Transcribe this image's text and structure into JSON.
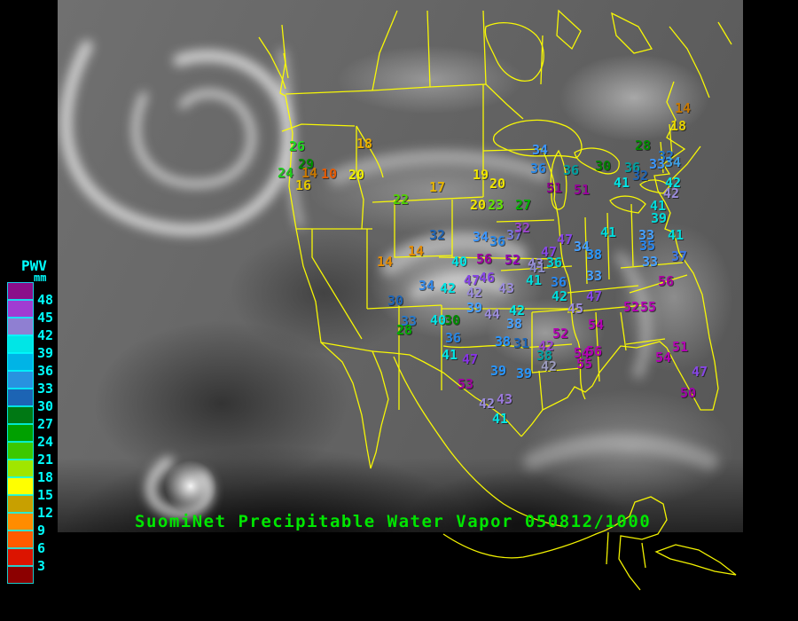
{
  "header": {
    "title": "SuomiNet Precipitable Water Vapor 050812/1000",
    "title_color": "#00e600"
  },
  "legend": {
    "title": "PWV",
    "unit": "mm",
    "text_color": "#00ffff",
    "labels": [
      "48",
      "45",
      "42",
      "39",
      "36",
      "33",
      "30",
      "27",
      "24",
      "21",
      "18",
      "15",
      "12",
      "9",
      "6",
      "3"
    ],
    "swatch_colors": [
      "#8a0f8a",
      "#a03cd2",
      "#8f7fd2",
      "#00e6e6",
      "#00b4e6",
      "#2892e0",
      "#1c64b4",
      "#007814",
      "#00a000",
      "#3cc800",
      "#a0e600",
      "#ffff00",
      "#c8a000",
      "#ff8c00",
      "#ff5a00",
      "#dc1400",
      "#8c0000"
    ]
  },
  "map": {
    "outline_color": "#ffff00",
    "cloud_color": "#ececec"
  },
  "stations": [
    [
      "26",
      326,
      158,
      "#1edc1e"
    ],
    [
      "29",
      336,
      178,
      "#008c00"
    ],
    [
      "24",
      313,
      188,
      "#1ecc1e"
    ],
    [
      "14",
      340,
      188,
      "#c87800"
    ],
    [
      "10",
      362,
      189,
      "#e65a00"
    ],
    [
      "20",
      393,
      190,
      "#f0f000"
    ],
    [
      "16",
      333,
      202,
      "#e6c800"
    ],
    [
      "18",
      402,
      155,
      "#e6a800"
    ],
    [
      "17",
      484,
      204,
      "#e6b400"
    ],
    [
      "22",
      443,
      218,
      "#50d200"
    ],
    [
      "19",
      533,
      190,
      "#f0e600"
    ],
    [
      "20",
      552,
      200,
      "#f0e600"
    ],
    [
      "34",
      600,
      162,
      "#3c96ff"
    ],
    [
      "36",
      598,
      183,
      "#2887e6"
    ],
    [
      "36",
      635,
      185,
      "#00a0a0"
    ],
    [
      "30",
      671,
      180,
      "#008200"
    ],
    [
      "51",
      616,
      205,
      "#8c008c"
    ],
    [
      "51",
      647,
      207,
      "#96009b"
    ],
    [
      "20",
      530,
      224,
      "#f0e600"
    ],
    [
      "23",
      550,
      224,
      "#64e600"
    ],
    [
      "27",
      581,
      224,
      "#00b400"
    ],
    [
      "14",
      761,
      115,
      "#c87800"
    ],
    [
      "18",
      756,
      135,
      "#e6d200"
    ],
    [
      "28",
      716,
      157,
      "#008c00"
    ],
    [
      "32",
      742,
      169,
      "#2878c8"
    ],
    [
      "33",
      732,
      178,
      "#3c96ff"
    ],
    [
      "34",
      750,
      176,
      "#3ca0e6"
    ],
    [
      "36",
      704,
      182,
      "#00a0a0"
    ],
    [
      "32",
      713,
      191,
      "#1e64b4"
    ],
    [
      "41",
      692,
      199,
      "#00e6e6"
    ],
    [
      "42",
      750,
      199,
      "#00e6e6"
    ],
    [
      "42",
      748,
      211,
      "#9b8cdc"
    ],
    [
      "41",
      733,
      225,
      "#00dcdc"
    ],
    [
      "39",
      734,
      239,
      "#00dcdc"
    ],
    [
      "41",
      753,
      258,
      "#00dcdc"
    ],
    [
      "33",
      720,
      258,
      "#46a0ff"
    ],
    [
      "35",
      721,
      270,
      "#2887f0"
    ],
    [
      "37",
      757,
      282,
      "#3c78e6"
    ],
    [
      "33",
      724,
      288,
      "#46a0ff"
    ],
    [
      "41",
      677,
      255,
      "#00dcdc"
    ],
    [
      "47",
      628,
      263,
      "#8746e6"
    ],
    [
      "34",
      647,
      271,
      "#46a0ff"
    ],
    [
      "47",
      610,
      277,
      "#8746e6"
    ],
    [
      "38",
      661,
      280,
      "#2896ff"
    ],
    [
      "36",
      616,
      289,
      "#00d2d2"
    ],
    [
      "43",
      595,
      290,
      "#9b8cdc"
    ],
    [
      "33",
      661,
      304,
      "#46a0ff"
    ],
    [
      "41",
      593,
      309,
      "#00dcdc"
    ],
    [
      "36",
      621,
      311,
      "#2887f0"
    ],
    [
      "56",
      742,
      310,
      "#aa00a0"
    ],
    [
      "42",
      622,
      327,
      "#00dcdc"
    ],
    [
      "47",
      661,
      327,
      "#8746e6"
    ],
    [
      "45",
      640,
      341,
      "#9b8cdc"
    ],
    [
      "52",
      703,
      339,
      "#b400b4"
    ],
    [
      "55",
      722,
      339,
      "#b400b4"
    ],
    [
      "32",
      484,
      258,
      "#1e64b4"
    ],
    [
      "14",
      460,
      276,
      "#e68c00"
    ],
    [
      "14",
      425,
      288,
      "#e68c00"
    ],
    [
      "34",
      533,
      260,
      "#3c96ff"
    ],
    [
      "36",
      552,
      265,
      "#2887e6"
    ],
    [
      "37",
      571,
      258,
      "#7878dc"
    ],
    [
      "32",
      580,
      250,
      "#9b46cc"
    ],
    [
      "40",
      509,
      288,
      "#00e6e6"
    ],
    [
      "56",
      537,
      285,
      "#a000a0"
    ],
    [
      "52",
      569,
      286,
      "#9100b4"
    ],
    [
      "41",
      597,
      295,
      "#8c8cc8"
    ],
    [
      "47",
      523,
      309,
      "#8746e6"
    ],
    [
      "46",
      540,
      306,
      "#8746e6"
    ],
    [
      "42",
      526,
      323,
      "#9b8cdc"
    ],
    [
      "43",
      562,
      318,
      "#9b8cdc"
    ],
    [
      "34",
      472,
      315,
      "#3287e6"
    ],
    [
      "42",
      496,
      318,
      "#00e6e6"
    ],
    [
      "30",
      437,
      332,
      "#1e64b4"
    ],
    [
      "39",
      526,
      340,
      "#46a0ff"
    ],
    [
      "44",
      546,
      347,
      "#9b8cdc"
    ],
    [
      "42",
      574,
      343,
      "#00e6e6"
    ],
    [
      "33",
      452,
      355,
      "#2878c8"
    ],
    [
      "28",
      447,
      365,
      "#00aa00"
    ],
    [
      "40",
      485,
      354,
      "#00e6e6"
    ],
    [
      "30",
      501,
      354,
      "#008c00"
    ],
    [
      "36",
      502,
      374,
      "#2887e6"
    ],
    [
      "41",
      498,
      393,
      "#00e6e6"
    ],
    [
      "47",
      521,
      398,
      "#8732e6"
    ],
    [
      "53",
      516,
      426,
      "#a000a0"
    ],
    [
      "38",
      571,
      358,
      "#46a0ff"
    ],
    [
      "38",
      558,
      378,
      "#2896ff"
    ],
    [
      "31",
      579,
      380,
      "#1e64b4"
    ],
    [
      "39",
      553,
      411,
      "#2896ff"
    ],
    [
      "39",
      582,
      414,
      "#2896ff"
    ],
    [
      "42",
      540,
      448,
      "#9b8cdc"
    ],
    [
      "43",
      560,
      443,
      "#9b78dc"
    ],
    [
      "41",
      555,
      465,
      "#00e6e6"
    ],
    [
      "42",
      607,
      383,
      "#9b46cc"
    ],
    [
      "38",
      605,
      394,
      "#00a0a0"
    ],
    [
      "42",
      610,
      406,
      "#9b9bbe"
    ],
    [
      "54",
      663,
      359,
      "#b400b4"
    ],
    [
      "52",
      623,
      369,
      "#b400b4"
    ],
    [
      "54",
      647,
      391,
      "#b400b4"
    ],
    [
      "56",
      661,
      389,
      "#b400b4"
    ],
    [
      "55",
      650,
      403,
      "#b400b4"
    ],
    [
      "51",
      758,
      384,
      "#b400b4"
    ],
    [
      "54",
      739,
      396,
      "#b400b4"
    ],
    [
      "47",
      780,
      412,
      "#8746e6"
    ],
    [
      "50",
      767,
      436,
      "#a000aa"
    ]
  ]
}
